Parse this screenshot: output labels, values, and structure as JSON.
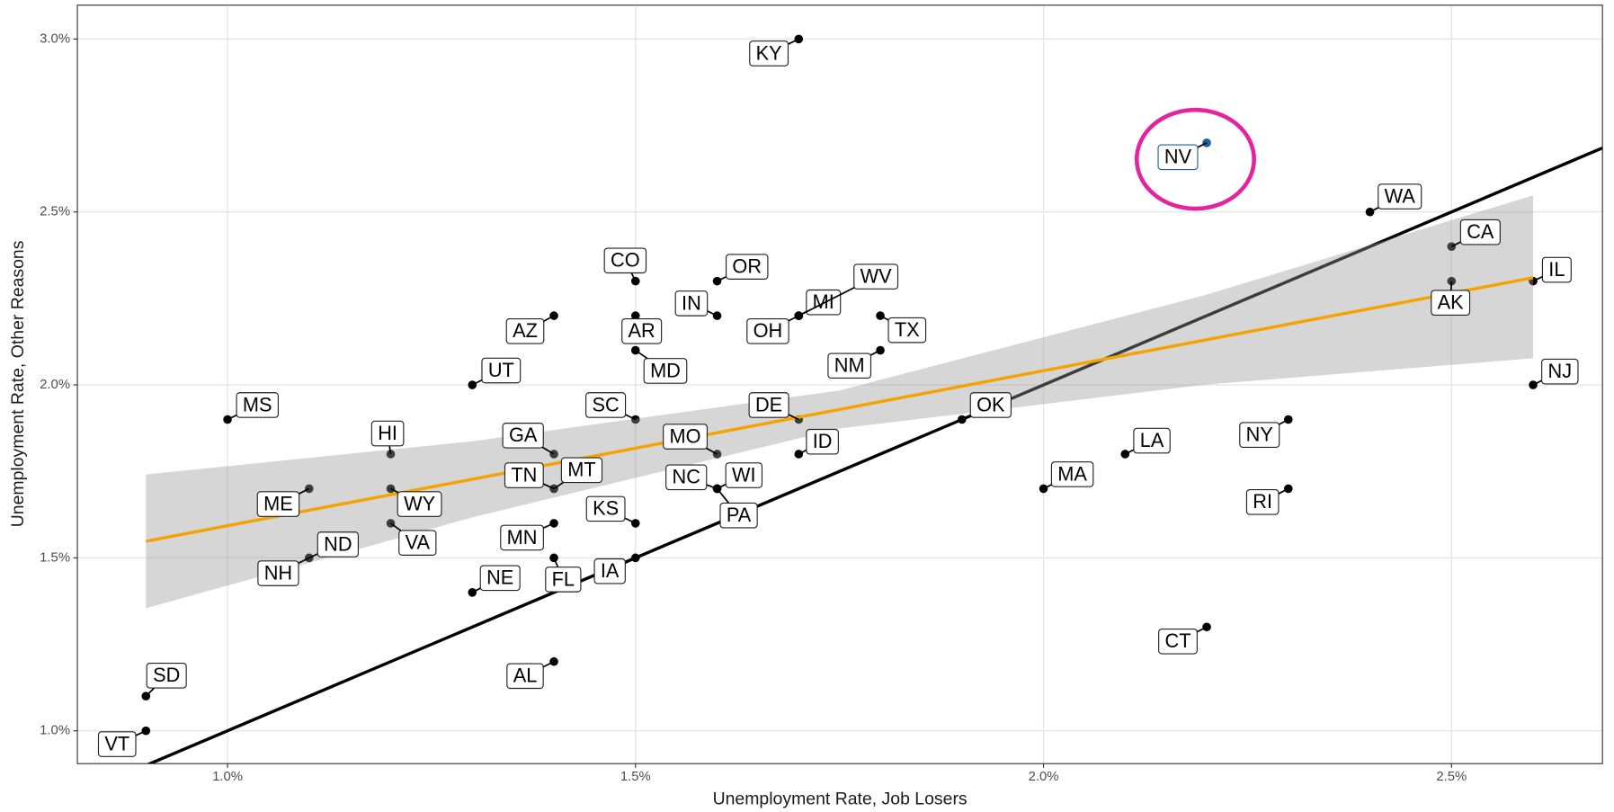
{
  "chart_data": {
    "type": "scatter",
    "xlabel": "Unemployment Rate, Job Losers",
    "ylabel": "Unemployment Rate, Other Reasons",
    "labels": [
      "KY",
      "NV",
      "WA",
      "CA",
      "AK",
      "IL",
      "NJ",
      "CO",
      "OR",
      "IN",
      "AR",
      "MD",
      "AZ",
      "OH",
      "MI",
      "WV",
      "TX",
      "NM",
      "UT",
      "MS",
      "SC",
      "DE",
      "OK",
      "HI",
      "GA",
      "MO",
      "ID",
      "LA",
      "NY",
      "ME",
      "WY",
      "TN",
      "MT",
      "NC",
      "WI",
      "PA",
      "MA",
      "RI",
      "KS",
      "MN",
      "VA",
      "ND",
      "NH",
      "FL",
      "IA",
      "NE",
      "AL",
      "CT",
      "SD",
      "VT"
    ],
    "x": [
      1.7,
      2.2,
      2.4,
      2.5,
      2.5,
      2.6,
      2.6,
      1.5,
      1.6,
      1.6,
      1.5,
      1.5,
      1.4,
      1.7,
      1.7,
      1.7,
      1.8,
      1.8,
      1.3,
      1.0,
      1.5,
      1.7,
      1.9,
      1.2,
      1.4,
      1.6,
      1.7,
      2.1,
      2.3,
      1.1,
      1.2,
      1.4,
      1.4,
      1.6,
      1.6,
      1.6,
      2.0,
      2.3,
      1.5,
      1.4,
      1.2,
      1.1,
      1.1,
      1.4,
      1.5,
      1.3,
      1.4,
      2.2,
      0.9,
      0.9
    ],
    "y": [
      3.0,
      2.7,
      2.5,
      2.4,
      2.3,
      2.3,
      2.0,
      2.3,
      2.3,
      2.2,
      2.2,
      2.1,
      2.2,
      2.2,
      2.2,
      2.2,
      2.2,
      2.1,
      2.0,
      1.9,
      1.9,
      1.9,
      1.9,
      1.8,
      1.8,
      1.8,
      1.8,
      1.8,
      1.9,
      1.7,
      1.7,
      1.7,
      1.7,
      1.7,
      1.7,
      1.7,
      1.7,
      1.7,
      1.6,
      1.6,
      1.6,
      1.5,
      1.5,
      1.5,
      1.5,
      1.4,
      1.2,
      1.3,
      1.1,
      1.0
    ],
    "color": "#000000",
    "highlight": "NV",
    "highlight_color": "#1f5f9f",
    "highlight_ring_color": "#e4249f",
    "reference_line": {
      "x": [
        0.816,
        2.685
      ],
      "y": [
        0.816,
        2.685
      ],
      "color": "#000000"
    },
    "fit": {
      "x": [
        0.9,
        2.6
      ],
      "y": [
        1.548,
        2.31
      ],
      "color": "#f5a300"
    },
    "fit_band": {
      "x": [
        0.9,
        1.3,
        1.75,
        2.2,
        2.6
      ],
      "lower": [
        1.354,
        1.617,
        1.874,
        2.001,
        2.077
      ],
      "upper": [
        1.741,
        1.837,
        1.984,
        2.261,
        2.548
      ]
    },
    "xlim": [
      0.816,
      2.685
    ],
    "ylim": [
      0.905,
      3.098
    ],
    "xticks": [
      {
        "value": 1.0,
        "label": "1.0%"
      },
      {
        "value": 1.5,
        "label": "1.5%"
      },
      {
        "value": 2.0,
        "label": "2.0%"
      },
      {
        "value": 2.5,
        "label": "2.5%"
      }
    ],
    "yticks": [
      {
        "value": 1.0,
        "label": "1.0%"
      },
      {
        "value": 1.5,
        "label": "1.5%"
      },
      {
        "value": 2.0,
        "label": "2.0%"
      },
      {
        "value": 2.5,
        "label": "2.5%"
      },
      {
        "value": 3.0,
        "label": "3.0%"
      }
    ],
    "grid": true
  }
}
